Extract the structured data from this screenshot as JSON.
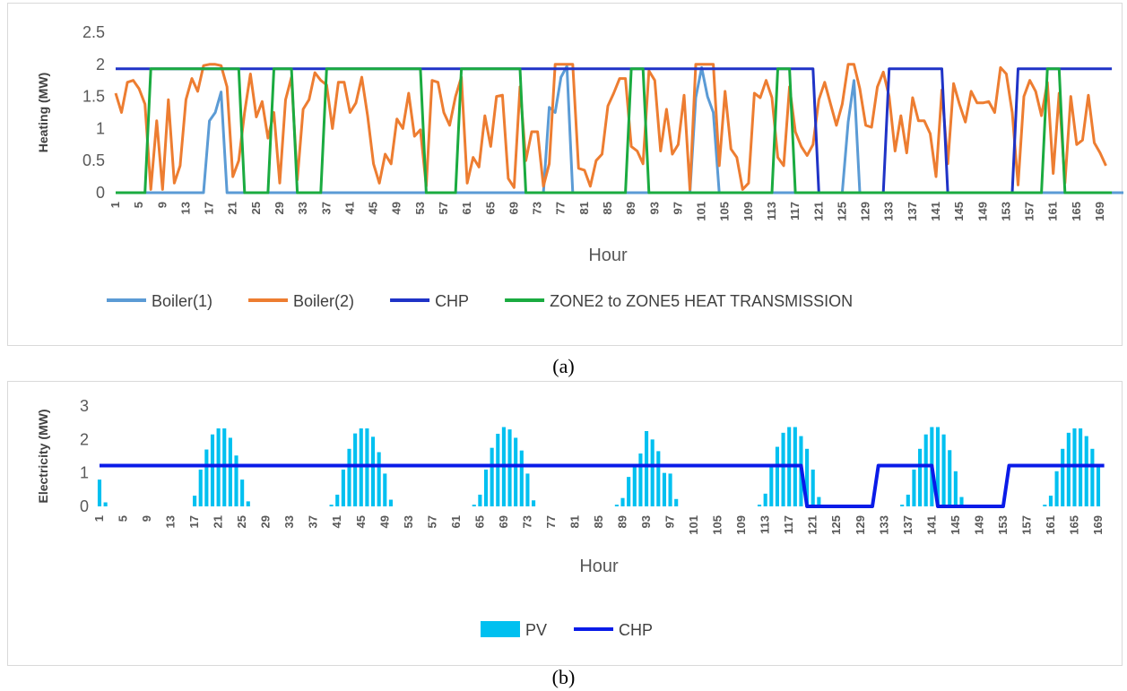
{
  "captions": {
    "a": "(a)",
    "b": "(b)"
  },
  "chart_data": [
    {
      "id": "a",
      "type": "line",
      "xlabel": "Hour",
      "ylabel": "Heating (MW)",
      "ylim": [
        0,
        2.5
      ],
      "yticks": [
        "0",
        "0.5",
        "1",
        "1.5",
        "2",
        "2.5"
      ],
      "x": {
        "start": 1,
        "end": 169
      },
      "x_tick_labels": [
        "1",
        "5",
        "9",
        "13",
        "17",
        "21",
        "25",
        "29",
        "33",
        "37",
        "41",
        "45",
        "49",
        "53",
        "57",
        "61",
        "65",
        "69",
        "73",
        "77",
        "81",
        "85",
        "89",
        "93",
        "97",
        "101",
        "105",
        "109",
        "113",
        "117",
        "121",
        "125",
        "129",
        "133",
        "137",
        "141",
        "145",
        "149",
        "153",
        "157",
        "161",
        "165",
        "169"
      ],
      "legend_position": "bottom",
      "series": [
        {
          "name": "Boiler(1)",
          "color": "#5b9bd5",
          "values": [
            0,
            0,
            0,
            0,
            0,
            0,
            0,
            0,
            0,
            0,
            0,
            0,
            0,
            0,
            0,
            0,
            1.12,
            1.25,
            1.57,
            0,
            0,
            0,
            0,
            0,
            0,
            0,
            0,
            0,
            0,
            0,
            0,
            0,
            0,
            0,
            0,
            0,
            0,
            0,
            0,
            0,
            0,
            0,
            0,
            0,
            0,
            0,
            0,
            0,
            0,
            0,
            0,
            0,
            0,
            0,
            0,
            0,
            0,
            0,
            0,
            0,
            0,
            0,
            0,
            0,
            0,
            0,
            0,
            0,
            0,
            0,
            0,
            0,
            0,
            0,
            1.33,
            1.25,
            1.8,
            1.97,
            0,
            0,
            0,
            0,
            0,
            0,
            0,
            0,
            0,
            0,
            0,
            0,
            0,
            0,
            0,
            0,
            0,
            0,
            0,
            0,
            0,
            1.48,
            1.95,
            1.5,
            1.25,
            0,
            0,
            0,
            0,
            0,
            0,
            0,
            0,
            0,
            0,
            0,
            0,
            0,
            0,
            0,
            0,
            0,
            0,
            0,
            0,
            0,
            0,
            1.1,
            1.75,
            0,
            0,
            0,
            0,
            0,
            0,
            0,
            0,
            0,
            0,
            0,
            0,
            0,
            0,
            0,
            0,
            0,
            0,
            0,
            0,
            0,
            0,
            0,
            0,
            0,
            0,
            0,
            0,
            0,
            0,
            0,
            0,
            0,
            0,
            0,
            0,
            0,
            0,
            0,
            0,
            0,
            0,
            0,
            0,
            0,
            0
          ]
        },
        {
          "name": "Boiler(2)",
          "color": "#ed7d31",
          "values": [
            1.55,
            1.25,
            1.72,
            1.75,
            1.62,
            1.38,
            0.05,
            1.12,
            0.05,
            1.45,
            0.15,
            0.42,
            1.45,
            1.78,
            1.58,
            1.98,
            2.0,
            2.0,
            1.98,
            1.65,
            0.25,
            0.5,
            1.25,
            1.85,
            1.18,
            1.42,
            0.85,
            1.25,
            0.15,
            1.45,
            1.8,
            0.2,
            1.3,
            1.45,
            1.87,
            1.75,
            1.68,
            1.0,
            1.72,
            1.72,
            1.25,
            1.4,
            1.8,
            1.2,
            0.45,
            0.15,
            0.6,
            0.45,
            1.15,
            1.0,
            1.55,
            0.88,
            0.98,
            0.1,
            1.75,
            1.72,
            1.25,
            1.05,
            1.5,
            1.8,
            0.15,
            0.55,
            0.4,
            1.2,
            0.72,
            1.5,
            1.52,
            0.22,
            0.08,
            1.65,
            0.5,
            0.95,
            0.95,
            0.1,
            0.45,
            2.0,
            2.0,
            2.0,
            2.0,
            0.38,
            0.35,
            0.1,
            0.5,
            0.6,
            1.35,
            1.55,
            1.78,
            1.78,
            0.72,
            0.65,
            0.45,
            1.9,
            1.75,
            0.65,
            1.3,
            0.6,
            0.75,
            1.52,
            0.05,
            2.0,
            2.0,
            2.0,
            2.0,
            0.42,
            1.58,
            0.68,
            0.55,
            0.05,
            0.15,
            1.55,
            1.48,
            1.75,
            1.48,
            0.55,
            0.42,
            1.65,
            0.95,
            0.72,
            0.58,
            0.75,
            1.45,
            1.72,
            1.38,
            1.05,
            1.38,
            2.0,
            2.0,
            1.62,
            1.05,
            1.02,
            1.65,
            1.88,
            1.5,
            0.65,
            1.2,
            0.62,
            1.48,
            1.12,
            1.12,
            0.92,
            0.25,
            1.6,
            0.45,
            1.7,
            1.38,
            1.1,
            1.58,
            1.4,
            1.4,
            1.42,
            1.25,
            1.95,
            1.85,
            1.25,
            0.12,
            1.5,
            1.75,
            1.58,
            1.2,
            1.72,
            0.3,
            1.55,
            0.15,
            1.5,
            0.75,
            0.82,
            1.52,
            0.78,
            0.62,
            0.42
          ]
        },
        {
          "name": "CHP",
          "color": "#1f33c7",
          "values": [
            1.93,
            1.93,
            1.93,
            1.93,
            1.93,
            1.93,
            1.93,
            1.93,
            1.93,
            1.93,
            1.93,
            1.93,
            1.93,
            1.93,
            1.93,
            1.93,
            1.93,
            1.93,
            1.93,
            1.93,
            1.93,
            1.93,
            1.93,
            1.93,
            1.93,
            1.93,
            1.93,
            1.93,
            1.93,
            1.93,
            1.93,
            1.93,
            1.93,
            1.93,
            1.93,
            1.93,
            1.93,
            1.93,
            1.93,
            1.93,
            1.93,
            1.93,
            1.93,
            1.93,
            1.93,
            1.93,
            1.93,
            1.93,
            1.93,
            1.93,
            1.93,
            1.93,
            1.93,
            1.93,
            1.93,
            1.93,
            1.93,
            1.93,
            1.93,
            1.93,
            1.93,
            1.93,
            1.93,
            1.93,
            1.93,
            1.93,
            1.93,
            1.93,
            1.93,
            1.93,
            1.93,
            1.93,
            1.93,
            1.93,
            1.93,
            1.93,
            1.93,
            1.93,
            1.93,
            1.93,
            1.93,
            1.93,
            1.93,
            1.93,
            1.93,
            1.93,
            1.93,
            1.93,
            1.93,
            1.93,
            1.93,
            1.93,
            1.93,
            1.93,
            1.93,
            1.93,
            1.93,
            1.93,
            1.93,
            1.93,
            1.93,
            1.93,
            1.93,
            1.93,
            1.93,
            1.93,
            1.93,
            1.93,
            1.93,
            1.93,
            1.93,
            1.93,
            1.93,
            1.93,
            1.93,
            1.93,
            1.93,
            1.93,
            1.93,
            1.93,
            0,
            0,
            0,
            0,
            0,
            0,
            0,
            0,
            0,
            0,
            0,
            0,
            1.93,
            1.93,
            1.93,
            1.93,
            1.93,
            1.93,
            1.93,
            1.93,
            1.93,
            1.93,
            0,
            0,
            0,
            0,
            0,
            0,
            0,
            0,
            0,
            0,
            0,
            0,
            1.93,
            1.93,
            1.93,
            1.93,
            1.93,
            1.93,
            1.93,
            1.93,
            1.93,
            1.93,
            1.93,
            1.93,
            1.93,
            1.93,
            1.93,
            1.93,
            1.93
          ]
        },
        {
          "name": "ZONE2 to ZONE5 HEAT TRANSMISSION",
          "color": "#1aab40",
          "values": [
            0,
            0,
            0,
            0,
            0,
            0,
            1.93,
            1.93,
            1.93,
            1.93,
            1.93,
            1.93,
            1.93,
            1.93,
            1.93,
            1.93,
            1.93,
            1.93,
            1.93,
            1.93,
            1.93,
            1.93,
            0,
            0,
            0,
            0,
            0,
            1.93,
            1.93,
            1.93,
            1.93,
            0,
            0,
            0,
            0,
            0,
            1.93,
            1.93,
            1.93,
            1.93,
            1.93,
            1.93,
            1.93,
            1.93,
            1.93,
            1.93,
            1.93,
            1.93,
            1.93,
            1.93,
            1.93,
            1.93,
            1.93,
            0,
            0,
            0,
            0,
            0,
            0,
            1.93,
            1.93,
            1.93,
            1.93,
            1.93,
            1.93,
            1.93,
            1.93,
            1.93,
            1.93,
            1.93,
            0,
            0,
            0,
            0,
            0,
            0,
            0,
            0,
            0,
            0,
            0,
            0,
            0,
            0,
            0,
            0,
            0,
            0,
            1.93,
            1.93,
            1.93,
            0,
            0,
            0,
            0,
            0,
            0,
            0,
            0,
            0,
            0,
            0,
            0,
            0,
            0,
            0,
            0,
            0,
            0,
            0,
            0,
            0,
            0,
            1.93,
            1.93,
            1.93,
            0,
            0,
            0,
            0,
            0,
            0,
            0,
            0,
            0,
            0,
            0,
            0,
            0,
            0,
            0,
            0,
            0,
            0,
            0,
            0,
            0,
            0,
            0,
            0,
            0,
            0,
            0,
            0,
            0,
            0,
            0,
            0,
            0,
            0,
            0,
            0,
            0,
            0,
            0,
            0,
            0,
            0,
            0,
            1.93,
            1.93,
            1.93,
            0,
            0,
            0,
            0,
            0,
            0,
            0,
            0,
            0
          ]
        }
      ]
    },
    {
      "id": "b",
      "type": "bar+line",
      "xlabel": "Hour",
      "ylabel": "Electricity (MW)",
      "ylim": [
        0,
        3
      ],
      "yticks": [
        "0",
        "1",
        "2",
        "3"
      ],
      "x": {
        "start": 1,
        "end": 169
      },
      "x_tick_labels": [
        "1",
        "5",
        "9",
        "13",
        "17",
        "21",
        "25",
        "29",
        "33",
        "37",
        "41",
        "45",
        "49",
        "53",
        "57",
        "61",
        "65",
        "69",
        "73",
        "77",
        "81",
        "85",
        "89",
        "93",
        "97",
        "101",
        "105",
        "109",
        "113",
        "117",
        "121",
        "125",
        "129",
        "133",
        "137",
        "141",
        "145",
        "149",
        "153",
        "157",
        "161",
        "165",
        "169"
      ],
      "legend_position": "bottom",
      "series": [
        {
          "name": "PV",
          "kind": "bar",
          "color": "#00c0f0",
          "values": [
            0.8,
            0.12,
            0,
            0,
            0,
            0,
            0,
            0,
            0,
            0,
            0,
            0,
            0,
            0,
            0,
            0,
            0.32,
            1.1,
            1.7,
            2.15,
            2.33,
            2.33,
            2.05,
            1.52,
            0.8,
            0.15,
            0,
            0,
            0,
            0,
            0,
            0,
            0,
            0,
            0,
            0,
            0,
            0,
            0,
            0.05,
            0.35,
            1.1,
            1.72,
            2.18,
            2.33,
            2.33,
            2.08,
            1.62,
            0.98,
            0.2,
            0,
            0,
            0,
            0,
            0,
            0,
            0,
            0,
            0,
            0,
            0,
            0,
            0,
            0.05,
            0.35,
            1.1,
            1.75,
            2.17,
            2.37,
            2.3,
            2.05,
            1.67,
            0.98,
            0.18,
            0,
            0,
            0,
            0,
            0,
            0,
            0,
            0,
            0,
            0,
            0,
            0,
            0,
            0.05,
            0.25,
            0.88,
            1.22,
            1.58,
            2.25,
            2.0,
            1.65,
            1.0,
            0.98,
            0.22,
            0,
            0,
            0,
            0,
            0,
            0,
            0,
            0,
            0,
            0,
            0,
            0,
            0,
            0.05,
            0.38,
            1.2,
            1.78,
            2.2,
            2.37,
            2.37,
            2.1,
            1.72,
            1.1,
            0.28,
            0,
            0,
            0,
            0,
            0,
            0,
            0,
            0,
            0,
            0,
            0,
            0,
            0,
            0.05,
            0.35,
            1.1,
            1.72,
            2.15,
            2.37,
            2.37,
            2.15,
            1.68,
            1.05,
            0.28,
            0,
            0,
            0,
            0,
            0,
            0,
            0,
            0,
            0,
            0,
            0,
            0,
            0,
            0.05,
            0.32,
            1.05,
            1.72,
            2.2,
            2.33,
            2.33,
            2.1,
            1.72,
            1.2
          ]
        },
        {
          "name": "CHP",
          "kind": "line",
          "color": "#0a1be8",
          "values": [
            1.22,
            1.22,
            1.22,
            1.22,
            1.22,
            1.22,
            1.22,
            1.22,
            1.22,
            1.22,
            1.22,
            1.22,
            1.22,
            1.22,
            1.22,
            1.22,
            1.22,
            1.22,
            1.22,
            1.22,
            1.22,
            1.22,
            1.22,
            1.22,
            1.22,
            1.22,
            1.22,
            1.22,
            1.22,
            1.22,
            1.22,
            1.22,
            1.22,
            1.22,
            1.22,
            1.22,
            1.22,
            1.22,
            1.22,
            1.22,
            1.22,
            1.22,
            1.22,
            1.22,
            1.22,
            1.22,
            1.22,
            1.22,
            1.22,
            1.22,
            1.22,
            1.22,
            1.22,
            1.22,
            1.22,
            1.22,
            1.22,
            1.22,
            1.22,
            1.22,
            1.22,
            1.22,
            1.22,
            1.22,
            1.22,
            1.22,
            1.22,
            1.22,
            1.22,
            1.22,
            1.22,
            1.22,
            1.22,
            1.22,
            1.22,
            1.22,
            1.22,
            1.22,
            1.22,
            1.22,
            1.22,
            1.22,
            1.22,
            1.22,
            1.22,
            1.22,
            1.22,
            1.22,
            1.22,
            1.22,
            1.22,
            1.22,
            1.22,
            1.22,
            1.22,
            1.22,
            1.22,
            1.22,
            1.22,
            1.22,
            1.22,
            1.22,
            1.22,
            1.22,
            1.22,
            1.22,
            1.22,
            1.22,
            1.22,
            1.22,
            1.22,
            1.22,
            1.22,
            1.22,
            1.22,
            1.22,
            1.22,
            1.22,
            1.22,
            0,
            0,
            0,
            0,
            0,
            0,
            0,
            0,
            0,
            0,
            0,
            0,
            1.22,
            1.22,
            1.22,
            1.22,
            1.22,
            1.22,
            1.22,
            1.22,
            1.22,
            1.22,
            0,
            0,
            0,
            0,
            0,
            0,
            0,
            0,
            0,
            0,
            0,
            0,
            1.22,
            1.22,
            1.22,
            1.22,
            1.22,
            1.22,
            1.22,
            1.22,
            1.22,
            1.22,
            1.22,
            1.22,
            1.22,
            1.22,
            1.22,
            1.22,
            1.22
          ]
        }
      ]
    }
  ]
}
